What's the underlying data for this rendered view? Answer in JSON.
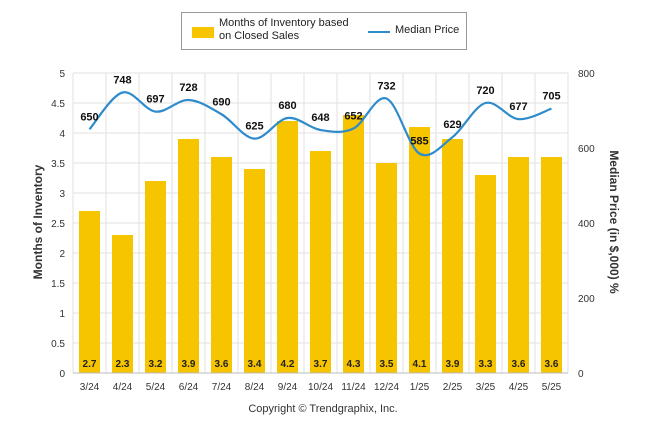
{
  "legend": {
    "bar_label": "Months of Inventory based on Closed Sales",
    "line_label": "Median Price"
  },
  "copyright": "Copyright © Trendgraphix, Inc.",
  "colors": {
    "bar": "#F7C400",
    "line": "#2E8BCC",
    "grid": "#E2E2E2",
    "axis_text": "#333333"
  },
  "chart_data": {
    "type": "bar",
    "categories": [
      "3/24",
      "4/24",
      "5/24",
      "6/24",
      "7/24",
      "8/24",
      "9/24",
      "10/24",
      "11/24",
      "12/24",
      "1/25",
      "2/25",
      "3/25",
      "4/25",
      "5/25"
    ],
    "series": [
      {
        "name": "Months of Inventory based on Closed Sales",
        "type": "bar",
        "axis": "left",
        "values": [
          2.7,
          2.3,
          3.2,
          3.9,
          3.6,
          3.4,
          4.2,
          3.7,
          4.3,
          3.5,
          4.1,
          3.9,
          3.3,
          3.6,
          3.6
        ]
      },
      {
        "name": "Median Price",
        "type": "line",
        "axis": "right",
        "values": [
          650,
          748,
          697,
          728,
          690,
          625,
          680,
          648,
          652,
          732,
          585,
          629,
          720,
          677,
          705
        ]
      }
    ],
    "ylabel": "Months of Inventory",
    "ylabel_right": "Median Price (in $,000) %",
    "ylim": [
      0,
      5
    ],
    "yticks": [
      "0",
      "0.5",
      "1",
      "1.5",
      "2",
      "2.5",
      "3",
      "3.5",
      "4",
      "4.5",
      "5"
    ],
    "ylim_right": [
      0,
      800
    ],
    "yticks_right": [
      "0",
      "200",
      "400",
      "600",
      "800"
    ],
    "grid": true,
    "legend_position": "top-center"
  }
}
